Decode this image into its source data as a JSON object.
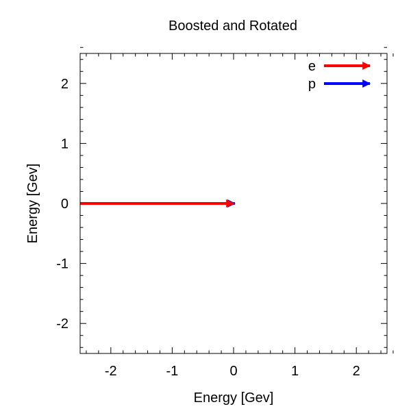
{
  "chart_data": {
    "type": "vector",
    "title": "Boosted and Rotated",
    "xlabel": "Energy [Gev]",
    "ylabel": "Energy [Gev]",
    "xlim": [
      -2.5,
      2.5
    ],
    "ylim": [
      -2.5,
      2.5
    ],
    "xticks": [
      -2,
      -1,
      0,
      1,
      2
    ],
    "yticks": [
      -2,
      -1,
      0,
      1,
      2
    ],
    "xtick_labels": [
      "-2",
      "-1",
      "0",
      "1",
      "2"
    ],
    "ytick_labels": [
      "-2",
      "-1",
      "0",
      "1",
      "2"
    ],
    "minor_ticks": true,
    "grid": false,
    "legend_position": "top-right",
    "series": [
      {
        "name": "e",
        "color": "#ff0000",
        "vectors": [
          {
            "x0": -2.5,
            "y0": 0,
            "x1": 0.0,
            "y1": 0
          }
        ]
      },
      {
        "name": "p",
        "color": "#0000ff",
        "vectors": [
          {
            "x0": 0,
            "y0": 0,
            "x1": 0.02,
            "y1": 0
          }
        ]
      }
    ]
  }
}
